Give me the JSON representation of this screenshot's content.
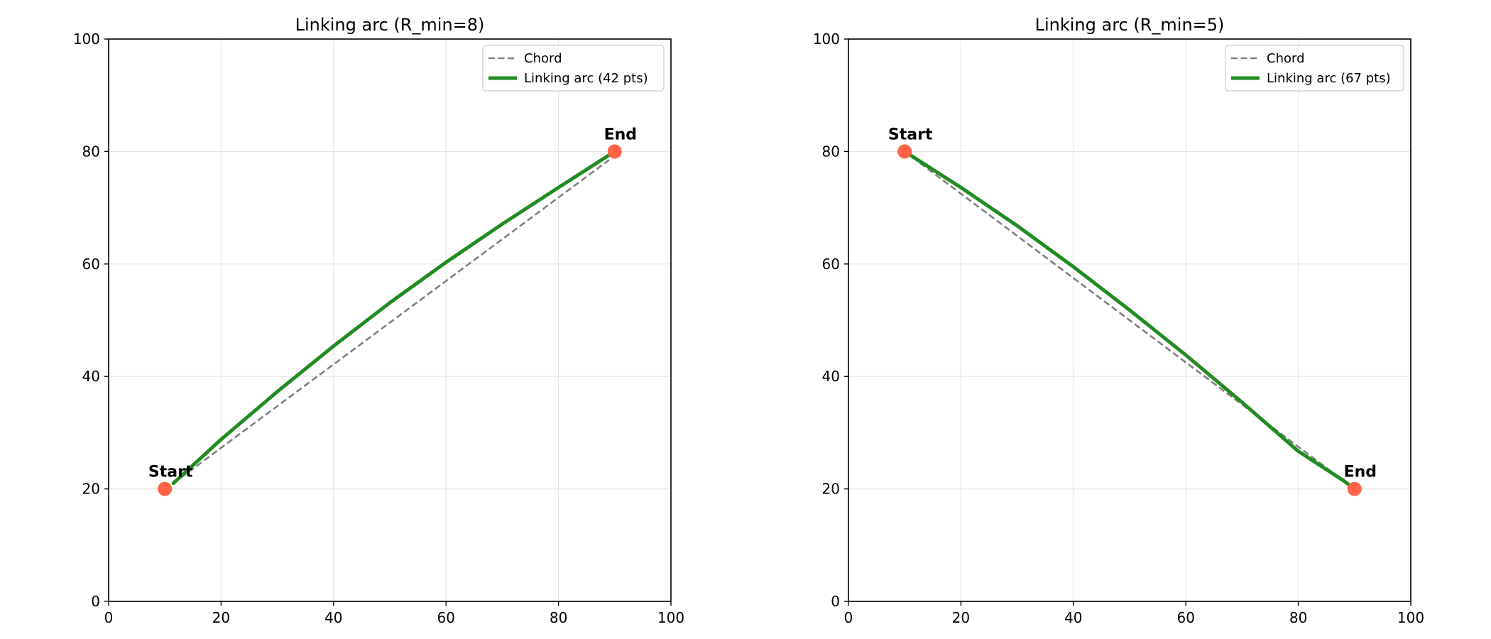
{
  "chart_data": [
    {
      "type": "line",
      "title": "Linking arc (R_min=8)",
      "xlabel": "",
      "ylabel": "",
      "xlim": [
        0,
        100
      ],
      "ylim": [
        0,
        100
      ],
      "xticks": [
        0,
        20,
        40,
        60,
        80,
        100
      ],
      "yticks": [
        0,
        20,
        40,
        60,
        80,
        100
      ],
      "grid": true,
      "legend_position": "top-right",
      "start": {
        "x": 10,
        "y": 20,
        "label": "Start"
      },
      "end": {
        "x": 90,
        "y": 80,
        "label": "End"
      },
      "series": [
        {
          "name": "Chord",
          "style": "dashed",
          "color": "#808080",
          "x": [
            11.5,
            89
          ],
          "y": [
            21,
            78.5
          ]
        },
        {
          "name": "Linking arc (42 pts)",
          "style": "solid",
          "color": "#228b22",
          "x": [
            11.5,
            20,
            30,
            40,
            50,
            60,
            70,
            80,
            90
          ],
          "y": [
            21,
            28.8,
            37.3,
            45.4,
            53.1,
            60.3,
            67.1,
            73.6,
            80
          ]
        }
      ]
    },
    {
      "type": "line",
      "title": "Linking arc (R_min=5)",
      "xlabel": "",
      "ylabel": "",
      "xlim": [
        0,
        100
      ],
      "ylim": [
        0,
        100
      ],
      "xticks": [
        0,
        20,
        40,
        60,
        80,
        100
      ],
      "yticks": [
        0,
        20,
        40,
        60,
        80,
        100
      ],
      "grid": true,
      "legend_position": "top-right",
      "start": {
        "x": 10,
        "y": 80,
        "label": "Start"
      },
      "end": {
        "x": 90,
        "y": 20,
        "label": "End"
      },
      "series": [
        {
          "name": "Chord",
          "style": "dashed",
          "color": "#808080",
          "x": [
            10,
            90
          ],
          "y": [
            80,
            20
          ]
        },
        {
          "name": "Linking arc (67 pts)",
          "style": "solid",
          "color": "#228b22",
          "x": [
            10,
            20,
            30,
            40,
            50,
            60,
            70,
            80,
            88,
            90
          ],
          "y": [
            80,
            73.6,
            66.8,
            59.5,
            51.8,
            43.8,
            35.4,
            26.7,
            21.5,
            20
          ]
        }
      ]
    }
  ],
  "colors": {
    "arc": "#228b22",
    "chord": "#808080",
    "endpoint": "#ff6347",
    "grid": "#e6e6e6",
    "axes": "#000000"
  }
}
